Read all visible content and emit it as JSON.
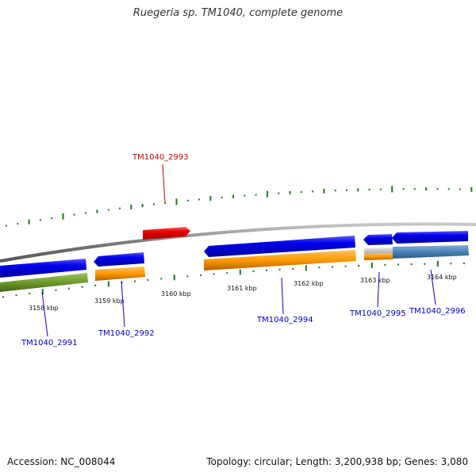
{
  "title": "Ruegeria sp. TM1040, complete genome",
  "footer": {
    "accession": "Accession: NC_008044",
    "summary": "Topology: circular; Length: 3,200,938 bp; Genes: 3,080"
  },
  "scale": {
    "labels": [
      "3158 kbp",
      "3159 kbp",
      "3160 kbp",
      "3161 kbp",
      "3162 kbp",
      "3163 kbp",
      "3164 kbp"
    ]
  },
  "genes": [
    {
      "name": "TM1040_2991",
      "color": "#0000cc"
    },
    {
      "name": "TM1040_2992",
      "color": "#0000cc"
    },
    {
      "name": "TM1040_2993",
      "color": "#cc0000"
    },
    {
      "name": "TM1040_2994",
      "color": "#0000cc"
    },
    {
      "name": "TM1040_2995",
      "color": "#0000cc"
    },
    {
      "name": "TM1040_2996",
      "color": "#0000cc"
    }
  ],
  "colors": {
    "backbone": "#8a8a8a",
    "cds": "#0000ee",
    "rna": "#ee0000",
    "orange_track": "#ff9900",
    "green_track": "#6e9a2c",
    "steelblue_track": "#4682b4",
    "gray_track": "#c0c0c0",
    "gc_ticks": "#1a7a1a"
  }
}
